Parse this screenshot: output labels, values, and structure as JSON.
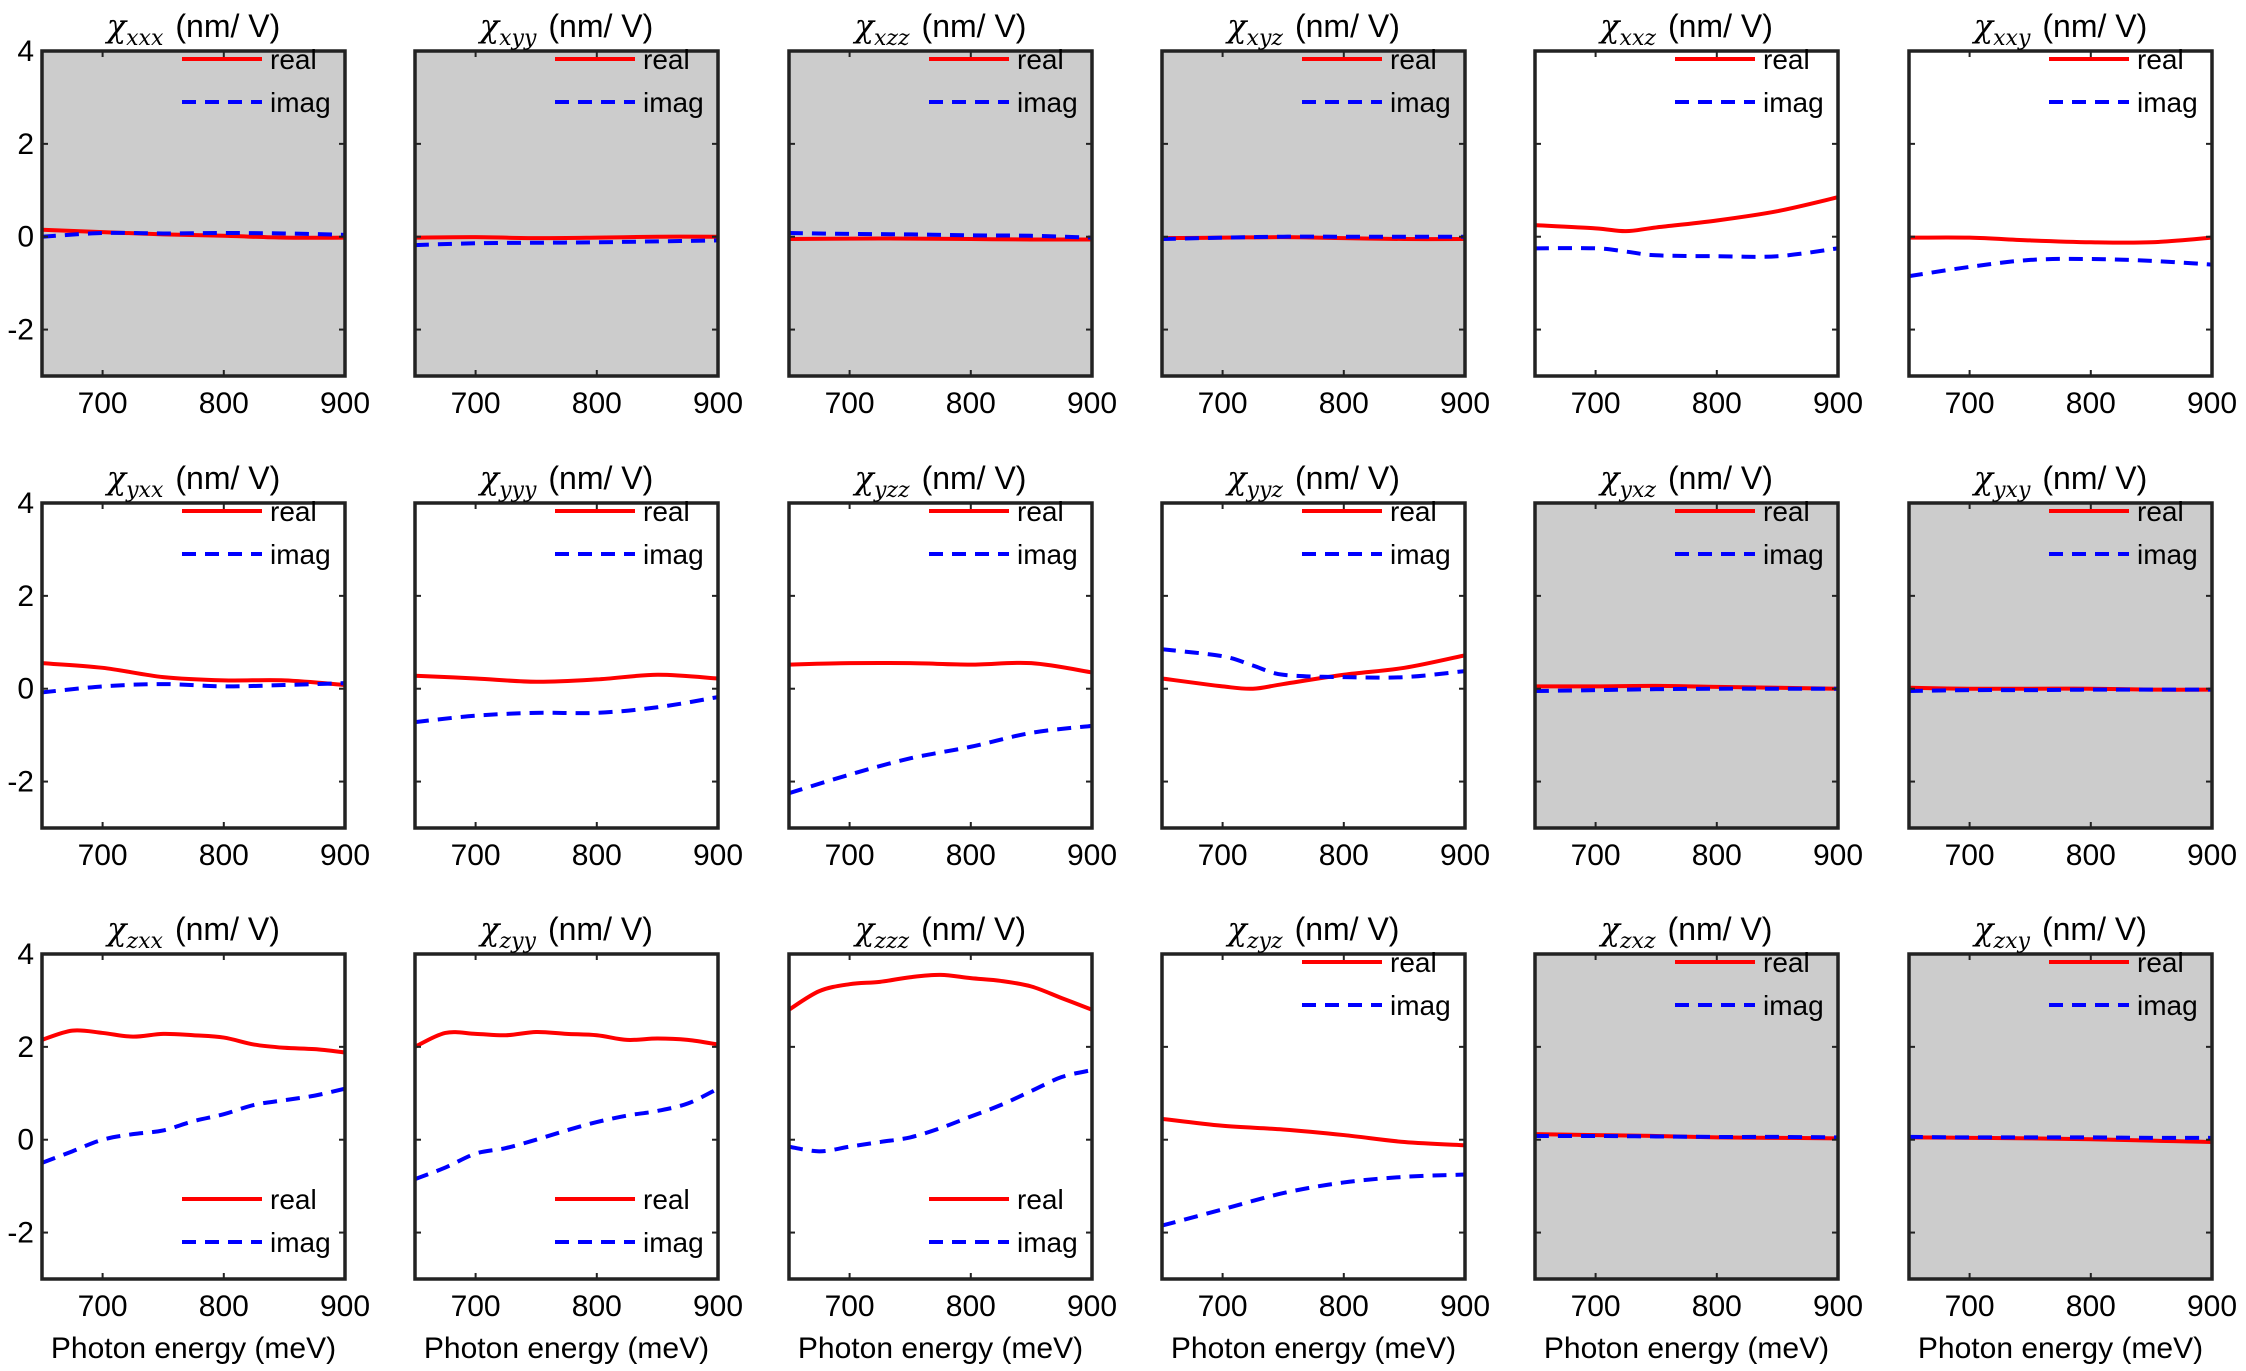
{
  "figure": {
    "xlabel": "Photon energy (meV)",
    "unit": "(nm/ V)",
    "legend_real": "real",
    "legend_imag": "imag",
    "colors": {
      "real": "#ff0000",
      "imag": "#0000ff",
      "shaded": "#cccccc",
      "axis": "#222222"
    }
  },
  "chart_data": [
    {
      "type": "line",
      "symbol": "χ",
      "subscript": "xxx",
      "shaded": true,
      "legend": "top-right",
      "x": [
        650,
        700,
        750,
        800,
        850,
        900
      ],
      "xlim": [
        650,
        900
      ],
      "ylim": [
        -3,
        4
      ],
      "xticks": [
        700,
        800,
        900
      ],
      "yticks": [
        4,
        2,
        0,
        -2
      ],
      "xlabel": "",
      "ylabel": "χxxx (nm/ V)",
      "series": [
        {
          "name": "real",
          "values": [
            0.15,
            0.1,
            0.05,
            0.02,
            -0.02,
            -0.02
          ]
        },
        {
          "name": "imag",
          "values": [
            0.0,
            0.08,
            0.07,
            0.08,
            0.07,
            0.04
          ]
        }
      ]
    },
    {
      "type": "line",
      "symbol": "χ",
      "subscript": "xyy",
      "shaded": true,
      "legend": "top-right",
      "x": [
        650,
        700,
        750,
        800,
        850,
        900
      ],
      "xlim": [
        650,
        900
      ],
      "ylim": [
        -3,
        4
      ],
      "xticks": [
        700,
        800,
        900
      ],
      "yticks": [
        4,
        2,
        0,
        -2
      ],
      "xlabel": "",
      "ylabel": "χxyy (nm/ V)",
      "series": [
        {
          "name": "real",
          "values": [
            -0.02,
            -0.01,
            -0.03,
            -0.02,
            0.0,
            0.0
          ]
        },
        {
          "name": "imag",
          "values": [
            -0.18,
            -0.14,
            -0.13,
            -0.12,
            -0.1,
            -0.08
          ]
        }
      ]
    },
    {
      "type": "line",
      "symbol": "χ",
      "subscript": "xzz",
      "shaded": true,
      "legend": "top-right",
      "x": [
        650,
        700,
        750,
        800,
        850,
        900
      ],
      "xlim": [
        650,
        900
      ],
      "ylim": [
        -3,
        4
      ],
      "xticks": [
        700,
        800,
        900
      ],
      "yticks": [
        4,
        2,
        0,
        -2
      ],
      "xlabel": "",
      "ylabel": "χxzz (nm/ V)",
      "series": [
        {
          "name": "real",
          "values": [
            -0.05,
            -0.04,
            -0.04,
            -0.05,
            -0.06,
            -0.06
          ]
        },
        {
          "name": "imag",
          "values": [
            0.08,
            0.06,
            0.05,
            0.03,
            0.02,
            -0.02
          ]
        }
      ]
    },
    {
      "type": "line",
      "symbol": "χ",
      "subscript": "xyz",
      "shaded": true,
      "legend": "top-right",
      "x": [
        650,
        700,
        750,
        800,
        850,
        900
      ],
      "xlim": [
        650,
        900
      ],
      "ylim": [
        -3,
        4
      ],
      "xticks": [
        700,
        800,
        900
      ],
      "yticks": [
        4,
        2,
        0,
        -2
      ],
      "xlabel": "",
      "ylabel": "χxyz (nm/ V)",
      "series": [
        {
          "name": "real",
          "values": [
            -0.03,
            -0.02,
            -0.01,
            -0.03,
            -0.05,
            -0.05
          ]
        },
        {
          "name": "imag",
          "values": [
            -0.05,
            -0.02,
            0.0,
            0.0,
            0.0,
            0.0
          ]
        }
      ]
    },
    {
      "type": "line",
      "symbol": "χ",
      "subscript": "xxz",
      "shaded": false,
      "legend": "top-right",
      "x": [
        650,
        700,
        725,
        750,
        800,
        850,
        900
      ],
      "xlim": [
        650,
        900
      ],
      "ylim": [
        -3,
        4
      ],
      "xticks": [
        700,
        800,
        900
      ],
      "yticks": [
        4,
        2,
        0,
        -2
      ],
      "xlabel": "",
      "ylabel": "χxxz (nm/ V)",
      "series": [
        {
          "name": "real",
          "values": [
            0.25,
            0.18,
            0.12,
            0.2,
            0.35,
            0.55,
            0.85
          ]
        },
        {
          "name": "imag",
          "values": [
            -0.25,
            -0.25,
            -0.32,
            -0.4,
            -0.42,
            -0.42,
            -0.25
          ]
        }
      ]
    },
    {
      "type": "line",
      "symbol": "χ",
      "subscript": "xxy",
      "shaded": false,
      "legend": "top-right",
      "x": [
        650,
        700,
        750,
        800,
        850,
        900
      ],
      "xlim": [
        650,
        900
      ],
      "ylim": [
        -3,
        4
      ],
      "xticks": [
        700,
        800,
        900
      ],
      "yticks": [
        4,
        2,
        0,
        -2
      ],
      "xlabel": "",
      "ylabel": "χxxy (nm/ V)",
      "series": [
        {
          "name": "real",
          "values": [
            -0.02,
            -0.02,
            -0.08,
            -0.12,
            -0.12,
            -0.02
          ]
        },
        {
          "name": "imag",
          "values": [
            -0.85,
            -0.65,
            -0.5,
            -0.48,
            -0.52,
            -0.6
          ]
        }
      ]
    },
    {
      "type": "line",
      "symbol": "χ",
      "subscript": "yxx",
      "shaded": false,
      "legend": "top-right",
      "x": [
        650,
        700,
        750,
        800,
        850,
        900
      ],
      "xlim": [
        650,
        900
      ],
      "ylim": [
        -3,
        4
      ],
      "xticks": [
        700,
        800,
        900
      ],
      "yticks": [
        4,
        2,
        0,
        -2
      ],
      "xlabel": "",
      "ylabel": "χyxx (nm/ V)",
      "series": [
        {
          "name": "real",
          "values": [
            0.55,
            0.45,
            0.25,
            0.18,
            0.18,
            0.08
          ]
        },
        {
          "name": "imag",
          "values": [
            -0.08,
            0.05,
            0.1,
            0.05,
            0.08,
            0.12
          ]
        }
      ]
    },
    {
      "type": "line",
      "symbol": "χ",
      "subscript": "yyy",
      "shaded": false,
      "legend": "top-right",
      "x": [
        650,
        700,
        750,
        800,
        850,
        900
      ],
      "xlim": [
        650,
        900
      ],
      "ylim": [
        -3,
        4
      ],
      "xticks": [
        700,
        800,
        900
      ],
      "yticks": [
        4,
        2,
        0,
        -2
      ],
      "xlabel": "",
      "ylabel": "χyyy (nm/ V)",
      "series": [
        {
          "name": "real",
          "values": [
            0.28,
            0.22,
            0.15,
            0.2,
            0.3,
            0.22
          ]
        },
        {
          "name": "imag",
          "values": [
            -0.72,
            -0.58,
            -0.52,
            -0.52,
            -0.4,
            -0.18
          ]
        }
      ]
    },
    {
      "type": "line",
      "symbol": "χ",
      "subscript": "yzz",
      "shaded": false,
      "legend": "top-right",
      "x": [
        650,
        700,
        750,
        800,
        850,
        900
      ],
      "xlim": [
        650,
        900
      ],
      "ylim": [
        -3,
        4
      ],
      "xticks": [
        700,
        800,
        900
      ],
      "yticks": [
        4,
        2,
        0,
        -2
      ],
      "xlabel": "",
      "ylabel": "χyzz (nm/ V)",
      "series": [
        {
          "name": "real",
          "values": [
            0.52,
            0.55,
            0.55,
            0.52,
            0.55,
            0.35
          ]
        },
        {
          "name": "imag",
          "values": [
            -2.25,
            -1.85,
            -1.5,
            -1.25,
            -0.95,
            -0.8
          ]
        }
      ]
    },
    {
      "type": "line",
      "symbol": "χ",
      "subscript": "yyz",
      "shaded": false,
      "legend": "top-right",
      "x": [
        650,
        700,
        725,
        750,
        800,
        850,
        900
      ],
      "xlim": [
        650,
        900
      ],
      "ylim": [
        -3,
        4
      ],
      "xticks": [
        700,
        800,
        900
      ],
      "yticks": [
        4,
        2,
        0,
        -2
      ],
      "xlabel": "",
      "ylabel": "χyyz (nm/ V)",
      "series": [
        {
          "name": "real",
          "values": [
            0.22,
            0.05,
            0.0,
            0.1,
            0.3,
            0.45,
            0.72
          ]
        },
        {
          "name": "imag",
          "values": [
            0.85,
            0.7,
            0.5,
            0.3,
            0.25,
            0.25,
            0.38
          ]
        }
      ]
    },
    {
      "type": "line",
      "symbol": "χ",
      "subscript": "yxz",
      "shaded": true,
      "legend": "top-right",
      "x": [
        650,
        700,
        750,
        800,
        850,
        900
      ],
      "xlim": [
        650,
        900
      ],
      "ylim": [
        -3,
        4
      ],
      "xticks": [
        700,
        800,
        900
      ],
      "yticks": [
        4,
        2,
        0,
        -2
      ],
      "xlabel": "",
      "ylabel": "χyxz (nm/ V)",
      "series": [
        {
          "name": "real",
          "values": [
            0.05,
            0.05,
            0.06,
            0.04,
            0.02,
            0.0
          ]
        },
        {
          "name": "imag",
          "values": [
            -0.05,
            -0.03,
            -0.01,
            0.0,
            0.0,
            0.0
          ]
        }
      ]
    },
    {
      "type": "line",
      "symbol": "χ",
      "subscript": "yxy",
      "shaded": true,
      "legend": "top-right",
      "x": [
        650,
        700,
        750,
        800,
        850,
        900
      ],
      "xlim": [
        650,
        900
      ],
      "ylim": [
        -3,
        4
      ],
      "xticks": [
        700,
        800,
        900
      ],
      "yticks": [
        4,
        2,
        0,
        -2
      ],
      "xlabel": "",
      "ylabel": "χyxy (nm/ V)",
      "series": [
        {
          "name": "real",
          "values": [
            0.02,
            0.0,
            0.0,
            0.0,
            -0.02,
            -0.02
          ]
        },
        {
          "name": "imag",
          "values": [
            -0.05,
            -0.03,
            -0.03,
            -0.02,
            -0.02,
            -0.02
          ]
        }
      ]
    },
    {
      "type": "line",
      "symbol": "χ",
      "subscript": "zxx",
      "shaded": false,
      "legend": "bottom-right",
      "x": [
        650,
        675,
        700,
        725,
        750,
        775,
        800,
        825,
        850,
        875,
        900
      ],
      "xlim": [
        650,
        900
      ],
      "ylim": [
        -3,
        4
      ],
      "xticks": [
        700,
        800,
        900
      ],
      "yticks": [
        4,
        2,
        0,
        -2
      ],
      "xlabel": "Photon energy (meV)",
      "ylabel": "χzxx (nm/ V)",
      "series": [
        {
          "name": "real",
          "values": [
            2.15,
            2.35,
            2.3,
            2.22,
            2.28,
            2.25,
            2.2,
            2.05,
            1.98,
            1.95,
            1.88
          ]
        },
        {
          "name": "imag",
          "values": [
            -0.5,
            -0.25,
            0.0,
            0.12,
            0.2,
            0.4,
            0.55,
            0.75,
            0.85,
            0.95,
            1.1
          ]
        }
      ]
    },
    {
      "type": "line",
      "symbol": "χ",
      "subscript": "zyy",
      "shaded": false,
      "legend": "bottom-right",
      "x": [
        650,
        675,
        700,
        725,
        750,
        775,
        800,
        825,
        850,
        875,
        900
      ],
      "xlim": [
        650,
        900
      ],
      "ylim": [
        -3,
        4
      ],
      "xticks": [
        700,
        800,
        900
      ],
      "yticks": [
        4,
        2,
        0,
        -2
      ],
      "xlabel": "Photon energy (meV)",
      "ylabel": "χzyy (nm/ V)",
      "series": [
        {
          "name": "real",
          "values": [
            2.0,
            2.3,
            2.28,
            2.25,
            2.32,
            2.28,
            2.25,
            2.15,
            2.18,
            2.15,
            2.05
          ]
        },
        {
          "name": "imag",
          "values": [
            -0.85,
            -0.6,
            -0.3,
            -0.18,
            0.0,
            0.2,
            0.38,
            0.52,
            0.62,
            0.78,
            1.1
          ]
        }
      ]
    },
    {
      "type": "line",
      "symbol": "χ",
      "subscript": "zzz",
      "shaded": false,
      "legend": "bottom-right",
      "x": [
        650,
        675,
        700,
        725,
        750,
        775,
        800,
        825,
        850,
        875,
        900
      ],
      "xlim": [
        650,
        900
      ],
      "ylim": [
        -3,
        4
      ],
      "xticks": [
        700,
        800,
        900
      ],
      "yticks": [
        4,
        2,
        0,
        -2
      ],
      "xlabel": "Photon energy (meV)",
      "ylabel": "χzzz (nm/ V)",
      "series": [
        {
          "name": "real",
          "values": [
            2.8,
            3.2,
            3.35,
            3.4,
            3.5,
            3.55,
            3.48,
            3.42,
            3.3,
            3.05,
            2.8
          ]
        },
        {
          "name": "imag",
          "values": [
            -0.15,
            -0.25,
            -0.15,
            -0.05,
            0.05,
            0.25,
            0.5,
            0.75,
            1.05,
            1.35,
            1.5
          ]
        }
      ]
    },
    {
      "type": "line",
      "symbol": "χ",
      "subscript": "zyz",
      "shaded": false,
      "legend": "top-right",
      "x": [
        650,
        700,
        750,
        800,
        850,
        900
      ],
      "xlim": [
        650,
        900
      ],
      "ylim": [
        -3,
        4
      ],
      "xticks": [
        700,
        800,
        900
      ],
      "yticks": [
        4,
        2,
        0,
        -2
      ],
      "xlabel": "Photon energy (meV)",
      "ylabel": "χzyz (nm/ V)",
      "series": [
        {
          "name": "real",
          "values": [
            0.45,
            0.3,
            0.22,
            0.1,
            -0.05,
            -0.12
          ]
        },
        {
          "name": "imag",
          "values": [
            -1.85,
            -1.5,
            -1.15,
            -0.92,
            -0.8,
            -0.75
          ]
        }
      ]
    },
    {
      "type": "line",
      "symbol": "χ",
      "subscript": "zxz",
      "shaded": true,
      "legend": "top-right",
      "x": [
        650,
        700,
        750,
        800,
        850,
        900
      ],
      "xlim": [
        650,
        900
      ],
      "ylim": [
        -3,
        4
      ],
      "xticks": [
        700,
        800,
        900
      ],
      "yticks": [
        4,
        2,
        0,
        -2
      ],
      "xlabel": "Photon energy (meV)",
      "ylabel": "χzxz (nm/ V)",
      "series": [
        {
          "name": "real",
          "values": [
            0.12,
            0.1,
            0.08,
            0.05,
            0.04,
            0.03
          ]
        },
        {
          "name": "imag",
          "values": [
            0.08,
            0.08,
            0.07,
            0.06,
            0.06,
            0.05
          ]
        }
      ]
    },
    {
      "type": "line",
      "symbol": "χ",
      "subscript": "zxy",
      "shaded": true,
      "legend": "top-right",
      "x": [
        650,
        700,
        750,
        800,
        850,
        900
      ],
      "xlim": [
        650,
        900
      ],
      "ylim": [
        -3,
        4
      ],
      "xticks": [
        700,
        800,
        900
      ],
      "yticks": [
        4,
        2,
        0,
        -2
      ],
      "xlabel": "Photon energy (meV)",
      "ylabel": "χzxy (nm/ V)",
      "series": [
        {
          "name": "real",
          "values": [
            0.05,
            0.04,
            0.03,
            0.01,
            -0.02,
            -0.05
          ]
        },
        {
          "name": "imag",
          "values": [
            0.06,
            0.05,
            0.05,
            0.05,
            0.04,
            0.04
          ]
        }
      ]
    }
  ]
}
